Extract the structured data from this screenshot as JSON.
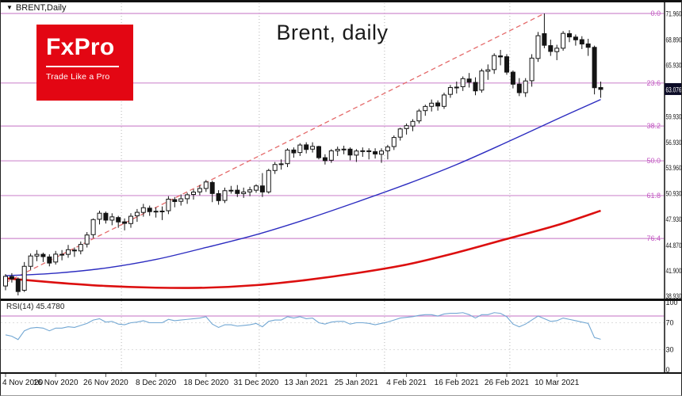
{
  "header": {
    "marker": "▼",
    "symbol": "BRENT,Daily"
  },
  "title": "Brent, daily",
  "logo": {
    "brand": "FxPro",
    "tagline": "Trade Like a Pro",
    "bg": "#e30613"
  },
  "price_axis": {
    "labels": [
      "71.960",
      "68.890",
      "65.930",
      "62.930",
      "59.930",
      "56.930",
      "53.960",
      "50.930",
      "47.930",
      "44.870",
      "41.900",
      "38.930"
    ],
    "current": "63.076"
  },
  "rsi_pane": {
    "label": "RSI(14) 45.4780"
  },
  "time_axis": {
    "labels": [
      {
        "text": "4 Nov 2020",
        "index": 0
      },
      {
        "text": "16 Nov 2020",
        "index": 8
      },
      {
        "text": "26 Nov 2020",
        "index": 16
      },
      {
        "text": "8 Dec 2020",
        "index": 24
      },
      {
        "text": "18 Dec 2020",
        "index": 32
      },
      {
        "text": "31 Dec 2020",
        "index": 40
      },
      {
        "text": "13 Jan 2021",
        "index": 48
      },
      {
        "text": "25 Jan 2021",
        "index": 56
      },
      {
        "text": "4 Feb 2021",
        "index": 64
      },
      {
        "text": "16 Feb 2021",
        "index": 72
      },
      {
        "text": "26 Feb 2021",
        "index": 80
      },
      {
        "text": "10 Mar 2021",
        "index": 88
      }
    ]
  },
  "theme": {
    "fib": "#cf8ccf",
    "fib_label": "#c254c2",
    "trend": "#e46a6a",
    "ma_fast": "#2c2cc0",
    "ma_slow": "#dc0f0f",
    "rsi_line": "#72a7d3",
    "rsi_grid": "#dedede",
    "candle_up": "#ffffff",
    "candle_down": "#141414",
    "candle_border": "#141414",
    "badge_bg": "#0b0b26",
    "grid": "#b5b5b5",
    "axis_ink": "#111111"
  },
  "chart_data": {
    "type": "candlestick",
    "title": "Brent, daily",
    "symbol": "BRENT,Daily",
    "xlabel": "",
    "ylabel": "",
    "ylim": [
      37.9,
      72.8
    ],
    "grid": "month-separators",
    "last_price": 63.076,
    "dates": [
      "2020-11-04",
      "2020-11-05",
      "2020-11-06",
      "2020-11-09",
      "2020-11-10",
      "2020-11-11",
      "2020-11-12",
      "2020-11-13",
      "2020-11-16",
      "2020-11-17",
      "2020-11-18",
      "2020-11-19",
      "2020-11-20",
      "2020-11-23",
      "2020-11-24",
      "2020-11-25",
      "2020-11-26",
      "2020-11-27",
      "2020-11-30",
      "2020-12-01",
      "2020-12-02",
      "2020-12-03",
      "2020-12-04",
      "2020-12-07",
      "2020-12-08",
      "2020-12-09",
      "2020-12-10",
      "2020-12-11",
      "2020-12-14",
      "2020-12-15",
      "2020-12-16",
      "2020-12-17",
      "2020-12-18",
      "2020-12-21",
      "2020-12-22",
      "2020-12-23",
      "2020-12-24",
      "2020-12-28",
      "2020-12-29",
      "2020-12-30",
      "2020-12-31",
      "2021-01-04",
      "2021-01-05",
      "2021-01-06",
      "2021-01-07",
      "2021-01-08",
      "2021-01-11",
      "2021-01-12",
      "2021-01-13",
      "2021-01-14",
      "2021-01-15",
      "2021-01-18",
      "2021-01-19",
      "2021-01-20",
      "2021-01-21",
      "2021-01-22",
      "2021-01-25",
      "2021-01-26",
      "2021-01-27",
      "2021-01-28",
      "2021-01-29",
      "2021-02-01",
      "2021-02-02",
      "2021-02-03",
      "2021-02-04",
      "2021-02-05",
      "2021-02-08",
      "2021-02-09",
      "2021-02-10",
      "2021-02-11",
      "2021-02-12",
      "2021-02-15",
      "2021-02-16",
      "2021-02-17",
      "2021-02-18",
      "2021-02-19",
      "2021-02-22",
      "2021-02-23",
      "2021-02-24",
      "2021-02-25",
      "2021-02-26",
      "2021-03-01",
      "2021-03-02",
      "2021-03-03",
      "2021-03-04",
      "2021-03-05",
      "2021-03-08",
      "2021-03-09",
      "2021-03-10",
      "2021-03-11",
      "2021-03-12",
      "2021-03-15",
      "2021-03-16",
      "2021-03-17",
      "2021-03-18",
      "2021-03-19"
    ],
    "ohlc": [
      [
        40.1,
        41.5,
        39.6,
        41.23
      ],
      [
        41.2,
        41.6,
        40.5,
        40.93
      ],
      [
        40.9,
        41.1,
        39.0,
        39.45
      ],
      [
        39.6,
        42.9,
        39.4,
        42.4
      ],
      [
        42.4,
        43.9,
        42.0,
        43.61
      ],
      [
        43.6,
        44.3,
        43.0,
        43.8
      ],
      [
        43.8,
        44.0,
        42.9,
        43.53
      ],
      [
        43.5,
        43.8,
        42.4,
        42.78
      ],
      [
        42.9,
        44.2,
        42.6,
        43.82
      ],
      [
        43.8,
        44.3,
        43.1,
        43.75
      ],
      [
        43.8,
        44.9,
        43.4,
        44.34
      ],
      [
        44.3,
        44.6,
        43.5,
        44.2
      ],
      [
        44.2,
        45.3,
        43.8,
        44.96
      ],
      [
        45.0,
        46.4,
        44.6,
        46.06
      ],
      [
        46.1,
        48.0,
        45.7,
        47.86
      ],
      [
        47.9,
        48.9,
        47.3,
        48.61
      ],
      [
        48.6,
        48.8,
        47.4,
        47.8
      ],
      [
        47.8,
        48.6,
        47.2,
        48.18
      ],
      [
        48.1,
        48.3,
        46.9,
        47.59
      ],
      [
        47.6,
        48.0,
        46.6,
        47.42
      ],
      [
        47.4,
        48.6,
        46.9,
        48.25
      ],
      [
        48.3,
        49.1,
        47.6,
        48.71
      ],
      [
        48.7,
        49.7,
        48.2,
        49.25
      ],
      [
        49.2,
        49.5,
        48.3,
        48.79
      ],
      [
        48.8,
        49.3,
        48.1,
        48.84
      ],
      [
        48.8,
        49.4,
        47.8,
        48.86
      ],
      [
        48.9,
        50.6,
        48.5,
        50.25
      ],
      [
        50.2,
        50.5,
        49.3,
        49.97
      ],
      [
        50.0,
        50.8,
        49.5,
        50.29
      ],
      [
        50.3,
        51.0,
        49.7,
        50.76
      ],
      [
        50.8,
        51.4,
        50.2,
        51.08
      ],
      [
        51.1,
        51.9,
        50.7,
        51.5
      ],
      [
        51.5,
        52.5,
        51.1,
        52.26
      ],
      [
        52.2,
        52.4,
        49.9,
        50.91
      ],
      [
        50.9,
        51.3,
        49.6,
        50.08
      ],
      [
        50.1,
        51.6,
        49.8,
        51.24
      ],
      [
        51.2,
        51.8,
        50.9,
        51.29
      ],
      [
        51.3,
        51.9,
        50.5,
        50.91
      ],
      [
        50.9,
        51.6,
        50.4,
        51.09
      ],
      [
        51.1,
        51.7,
        50.6,
        51.34
      ],
      [
        51.3,
        52.0,
        51.0,
        51.8
      ],
      [
        51.8,
        53.3,
        50.5,
        51.09
      ],
      [
        51.1,
        53.8,
        50.9,
        53.6
      ],
      [
        53.6,
        54.6,
        53.2,
        54.3
      ],
      [
        54.3,
        54.9,
        53.7,
        54.38
      ],
      [
        54.4,
        56.2,
        54.0,
        55.99
      ],
      [
        56.0,
        56.3,
        55.1,
        55.66
      ],
      [
        55.7,
        56.8,
        55.3,
        56.58
      ],
      [
        56.6,
        56.9,
        55.6,
        56.06
      ],
      [
        56.1,
        56.9,
        55.7,
        56.42
      ],
      [
        56.4,
        56.5,
        54.9,
        55.1
      ],
      [
        55.1,
        55.5,
        54.3,
        54.75
      ],
      [
        54.8,
        56.1,
        54.5,
        55.9
      ],
      [
        55.9,
        56.4,
        55.3,
        56.08
      ],
      [
        56.1,
        56.5,
        55.5,
        56.1
      ],
      [
        56.1,
        56.3,
        54.8,
        55.41
      ],
      [
        55.4,
        56.1,
        54.6,
        55.88
      ],
      [
        55.9,
        56.3,
        55.2,
        55.91
      ],
      [
        55.9,
        56.2,
        54.9,
        55.81
      ],
      [
        55.8,
        56.2,
        55.0,
        55.53
      ],
      [
        55.5,
        56.2,
        54.5,
        55.88
      ],
      [
        55.9,
        56.6,
        54.9,
        56.35
      ],
      [
        56.4,
        57.7,
        56.0,
        57.46
      ],
      [
        57.5,
        58.6,
        57.1,
        58.46
      ],
      [
        58.5,
        59.1,
        57.8,
        58.84
      ],
      [
        58.8,
        59.6,
        58.2,
        59.34
      ],
      [
        59.4,
        60.8,
        59.1,
        60.56
      ],
      [
        60.6,
        61.3,
        60.0,
        61.09
      ],
      [
        61.1,
        61.9,
        60.5,
        61.47
      ],
      [
        61.5,
        61.8,
        60.6,
        61.14
      ],
      [
        61.1,
        62.7,
        60.8,
        62.43
      ],
      [
        62.5,
        63.6,
        62.1,
        63.3
      ],
      [
        63.3,
        64.0,
        62.6,
        63.35
      ],
      [
        63.4,
        64.6,
        62.9,
        64.34
      ],
      [
        64.3,
        65.0,
        63.3,
        63.93
      ],
      [
        63.9,
        64.5,
        62.4,
        62.91
      ],
      [
        63.0,
        65.5,
        62.7,
        65.24
      ],
      [
        65.2,
        66.0,
        64.2,
        65.37
      ],
      [
        65.4,
        67.3,
        64.9,
        67.04
      ],
      [
        67.0,
        67.7,
        65.9,
        66.88
      ],
      [
        66.9,
        67.2,
        64.8,
        65.1
      ],
      [
        65.1,
        65.3,
        63.2,
        63.69
      ],
      [
        63.7,
        64.4,
        62.3,
        62.7
      ],
      [
        62.7,
        64.4,
        62.2,
        64.07
      ],
      [
        64.1,
        67.2,
        63.4,
        66.74
      ],
      [
        66.7,
        69.8,
        66.3,
        69.36
      ],
      [
        69.6,
        71.96,
        67.9,
        68.24
      ],
      [
        68.2,
        68.9,
        67.0,
        67.52
      ],
      [
        67.5,
        68.3,
        66.5,
        67.9
      ],
      [
        67.9,
        69.9,
        67.6,
        69.63
      ],
      [
        69.6,
        70.0,
        68.6,
        69.22
      ],
      [
        69.2,
        69.5,
        68.2,
        68.88
      ],
      [
        68.9,
        69.3,
        67.8,
        68.39
      ],
      [
        68.4,
        69.0,
        67.0,
        68.0
      ],
      [
        68.0,
        68.2,
        62.5,
        63.28
      ],
      [
        63.3,
        64.0,
        62.1,
        63.08
      ]
    ],
    "fib_levels": [
      {
        "label": "0.0",
        "price": 71.96
      },
      {
        "label": "23.6",
        "price": 63.83
      },
      {
        "label": "38.2",
        "price": 58.8
      },
      {
        "label": "50.0",
        "price": 54.73
      },
      {
        "label": "61.8",
        "price": 50.67
      },
      {
        "label": "76.4",
        "price": 45.65
      }
    ],
    "trendline": {
      "style": "dashed",
      "from": [
        0,
        40.5
      ],
      "to": [
        86,
        71.96
      ]
    },
    "ma_fast": {
      "name": "MA fast (blue)",
      "points": [
        [
          0,
          41.3
        ],
        [
          8,
          41.6
        ],
        [
          16,
          42.2
        ],
        [
          24,
          43.2
        ],
        [
          32,
          44.6
        ],
        [
          40,
          46.1
        ],
        [
          48,
          47.9
        ],
        [
          56,
          49.9
        ],
        [
          64,
          52.0
        ],
        [
          72,
          54.3
        ],
        [
          80,
          56.9
        ],
        [
          88,
          59.6
        ],
        [
          95,
          61.9
        ]
      ]
    },
    "ma_slow": {
      "name": "MA slow (red)",
      "points": [
        [
          0,
          41.0
        ],
        [
          8,
          40.5
        ],
        [
          16,
          40.1
        ],
        [
          24,
          39.9
        ],
        [
          32,
          39.9
        ],
        [
          40,
          40.2
        ],
        [
          48,
          40.8
        ],
        [
          56,
          41.6
        ],
        [
          64,
          42.6
        ],
        [
          72,
          44.0
        ],
        [
          80,
          45.6
        ],
        [
          88,
          47.2
        ],
        [
          95,
          48.9
        ]
      ]
    },
    "rsi": {
      "name": "RSI(14)",
      "current": 45.478,
      "scale": [
        100,
        70,
        30,
        0
      ],
      "levels": [
        80
      ],
      "values": [
        52,
        50,
        45,
        58,
        62,
        63,
        62,
        58,
        62,
        62,
        64,
        63,
        66,
        69,
        74,
        76,
        71,
        72,
        68,
        67,
        70,
        71,
        73,
        70,
        70,
        70,
        75,
        73,
        74,
        75,
        76,
        77,
        79,
        68,
        63,
        67,
        67,
        65,
        66,
        67,
        69,
        64,
        72,
        74,
        74,
        79,
        77,
        79,
        76,
        77,
        70,
        68,
        71,
        72,
        72,
        68,
        70,
        70,
        69,
        67,
        69,
        71,
        74,
        77,
        78,
        79,
        81,
        82,
        82,
        80,
        83,
        84,
        84,
        85,
        82,
        77,
        82,
        82,
        85,
        84,
        79,
        68,
        64,
        68,
        74,
        80,
        76,
        72,
        73,
        77,
        75,
        73,
        71,
        69,
        48,
        45.478
      ]
    }
  }
}
